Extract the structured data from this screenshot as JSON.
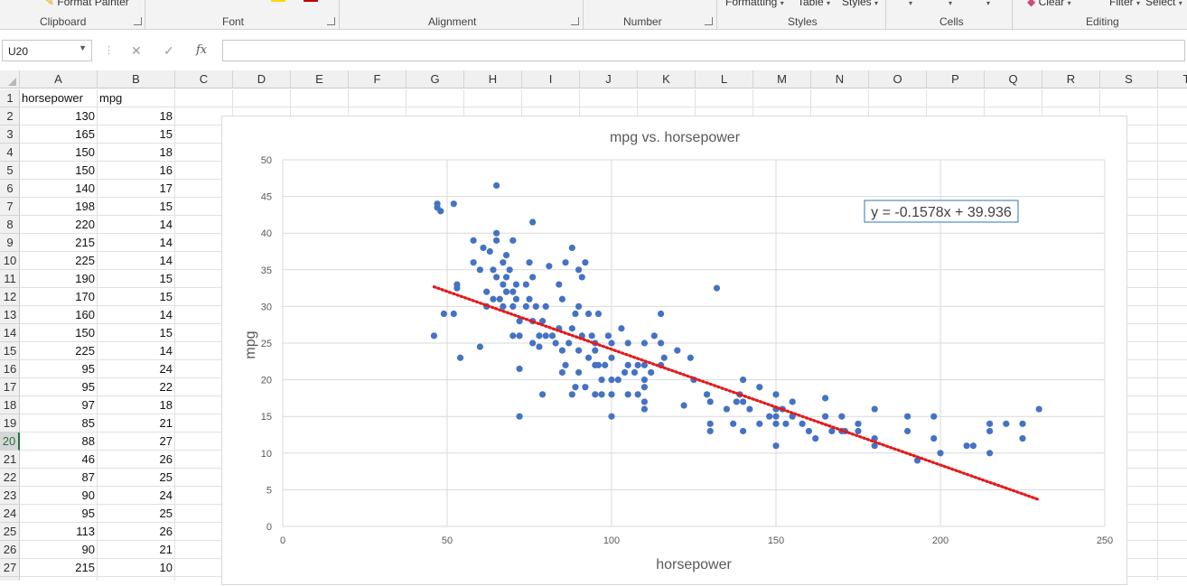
{
  "ribbon": {
    "clipboard": {
      "label": "Clipboard",
      "format_painter": "Format Painter"
    },
    "font": {
      "label": "Font"
    },
    "alignment": {
      "label": "Alignment"
    },
    "number": {
      "label": "Number"
    },
    "styles": {
      "label": "Styles",
      "conditional_formatting": "Formatting",
      "format_as_table": "Table",
      "cell_styles": "Styles"
    },
    "cells": {
      "label": "Cells"
    },
    "editing": {
      "label": "Editing",
      "clear": "Clear",
      "sort_filter": "Filter",
      "find_select": "Select"
    },
    "colors": {
      "font_highlight": "#ffd700",
      "font_color": "#c00000"
    }
  },
  "formula_bar": {
    "name_box": "U20",
    "cancel_icon": "close-icon",
    "enter_icon": "check-icon",
    "function_icon": "fx",
    "formula": ""
  },
  "sheet": {
    "columns": [
      "A",
      "B",
      "C",
      "D",
      "E",
      "F",
      "G",
      "H",
      "I",
      "J",
      "K",
      "L",
      "M",
      "N",
      "O",
      "P",
      "Q",
      "R",
      "S",
      "T"
    ],
    "row_numbers": [
      "1",
      "2",
      "3",
      "4",
      "5",
      "6",
      "7",
      "8",
      "9",
      "10",
      "11",
      "12",
      "13",
      "14",
      "15",
      "16",
      "17",
      "18",
      "19",
      "20",
      "21",
      "22",
      "23",
      "24",
      "25",
      "26",
      "27"
    ],
    "active_row": "20",
    "headers": {
      "a": "horsepower",
      "b": "mpg"
    },
    "rows": [
      [
        "130",
        "18"
      ],
      [
        "165",
        "15"
      ],
      [
        "150",
        "18"
      ],
      [
        "150",
        "16"
      ],
      [
        "140",
        "17"
      ],
      [
        "198",
        "15"
      ],
      [
        "220",
        "14"
      ],
      [
        "215",
        "14"
      ],
      [
        "225",
        "14"
      ],
      [
        "190",
        "15"
      ],
      [
        "170",
        "15"
      ],
      [
        "160",
        "14"
      ],
      [
        "150",
        "15"
      ],
      [
        "225",
        "14"
      ],
      [
        "95",
        "24"
      ],
      [
        "95",
        "22"
      ],
      [
        "97",
        "18"
      ],
      [
        "85",
        "21"
      ],
      [
        "88",
        "27"
      ],
      [
        "46",
        "26"
      ],
      [
        "87",
        "25"
      ],
      [
        "90",
        "24"
      ],
      [
        "95",
        "25"
      ],
      [
        "113",
        "26"
      ],
      [
        "90",
        "21"
      ],
      [
        "215",
        "10"
      ]
    ]
  },
  "chart_data": {
    "type": "scatter",
    "title": "mpg vs. horsepower",
    "xlabel": "horsepower",
    "ylabel": "mpg",
    "xlim": [
      0,
      250
    ],
    "ylim": [
      0,
      50
    ],
    "xticks": [
      "0",
      "50",
      "100",
      "150",
      "200",
      "250"
    ],
    "yticks": [
      "0",
      "5",
      "10",
      "15",
      "20",
      "25",
      "30",
      "35",
      "40",
      "45",
      "50"
    ],
    "grid": true,
    "legend": "none",
    "marker_color": "#4472c4",
    "trendline": {
      "type": "linear",
      "slope": -0.1578,
      "intercept": 39.936,
      "color": "#e31a1c",
      "x_range": [
        46,
        230
      ],
      "equation": "y = -0.1578x + 39.936"
    },
    "points": [
      [
        46,
        26
      ],
      [
        47,
        44
      ],
      [
        47,
        43.5
      ],
      [
        48,
        43
      ],
      [
        49,
        29
      ],
      [
        52,
        44
      ],
      [
        52,
        29
      ],
      [
        53,
        32.5
      ],
      [
        53,
        33
      ],
      [
        54,
        23
      ],
      [
        58,
        39
      ],
      [
        58,
        36
      ],
      [
        60,
        35
      ],
      [
        60,
        24.5
      ],
      [
        61,
        38
      ],
      [
        62,
        32
      ],
      [
        62,
        30
      ],
      [
        63,
        37.5
      ],
      [
        64,
        35
      ],
      [
        64,
        31
      ],
      [
        65,
        40
      ],
      [
        65,
        39
      ],
      [
        65,
        46.5
      ],
      [
        65,
        34
      ],
      [
        66,
        31
      ],
      [
        67,
        36
      ],
      [
        67,
        33
      ],
      [
        67,
        30
      ],
      [
        68,
        37
      ],
      [
        68,
        34
      ],
      [
        68,
        32
      ],
      [
        69,
        35
      ],
      [
        70,
        32
      ],
      [
        70,
        30
      ],
      [
        70,
        26
      ],
      [
        70,
        39
      ],
      [
        71,
        31
      ],
      [
        71,
        33
      ],
      [
        72,
        28
      ],
      [
        72,
        26
      ],
      [
        72,
        21.5
      ],
      [
        72,
        15
      ],
      [
        74,
        33
      ],
      [
        74,
        30
      ],
      [
        75,
        31
      ],
      [
        75,
        36
      ],
      [
        76,
        34
      ],
      [
        76,
        28
      ],
      [
        76,
        25
      ],
      [
        76,
        41.5
      ],
      [
        77,
        30
      ],
      [
        78,
        26
      ],
      [
        78,
        24.5
      ],
      [
        79,
        28
      ],
      [
        79,
        18
      ],
      [
        80,
        26
      ],
      [
        80,
        30
      ],
      [
        81,
        35.5
      ],
      [
        82,
        26
      ],
      [
        83,
        25
      ],
      [
        84,
        33
      ],
      [
        84,
        27
      ],
      [
        85,
        31
      ],
      [
        85,
        21
      ],
      [
        85,
        24
      ],
      [
        86,
        22
      ],
      [
        86,
        36
      ],
      [
        87,
        25
      ],
      [
        88,
        27
      ],
      [
        88,
        38
      ],
      [
        88,
        18
      ],
      [
        89,
        19
      ],
      [
        89,
        29
      ],
      [
        90,
        24
      ],
      [
        90,
        21
      ],
      [
        90,
        35
      ],
      [
        90,
        30
      ],
      [
        91,
        34
      ],
      [
        91,
        26
      ],
      [
        92,
        19
      ],
      [
        92,
        36
      ],
      [
        93,
        29
      ],
      [
        93,
        23
      ],
      [
        94,
        26
      ],
      [
        95,
        25
      ],
      [
        95,
        24
      ],
      [
        95,
        22
      ],
      [
        95,
        18
      ],
      [
        96,
        29
      ],
      [
        96,
        22
      ],
      [
        97,
        18
      ],
      [
        97,
        20
      ],
      [
        98,
        22
      ],
      [
        99,
        26
      ],
      [
        100,
        25
      ],
      [
        100,
        23
      ],
      [
        100,
        20
      ],
      [
        100,
        15
      ],
      [
        100,
        18
      ],
      [
        102,
        20
      ],
      [
        103,
        27
      ],
      [
        104,
        21
      ],
      [
        105,
        25
      ],
      [
        105,
        22
      ],
      [
        105,
        18
      ],
      [
        107,
        21
      ],
      [
        108,
        18
      ],
      [
        108,
        22
      ],
      [
        110,
        25
      ],
      [
        110,
        22
      ],
      [
        110,
        20
      ],
      [
        110,
        17
      ],
      [
        110,
        16
      ],
      [
        110,
        19
      ],
      [
        112,
        21
      ],
      [
        113,
        26
      ],
      [
        115,
        22
      ],
      [
        115,
        25
      ],
      [
        115,
        29
      ],
      [
        116,
        23
      ],
      [
        120,
        24
      ],
      [
        122,
        16.5
      ],
      [
        124,
        23
      ],
      [
        125,
        20
      ],
      [
        129,
        18
      ],
      [
        130,
        17
      ],
      [
        130,
        14
      ],
      [
        130,
        13
      ],
      [
        132,
        32.5
      ],
      [
        135,
        16
      ],
      [
        137,
        14
      ],
      [
        138,
        17
      ],
      [
        139,
        18
      ],
      [
        140,
        20
      ],
      [
        140,
        17
      ],
      [
        140,
        13
      ],
      [
        142,
        16
      ],
      [
        145,
        14
      ],
      [
        145,
        19
      ],
      [
        148,
        15
      ],
      [
        150,
        18
      ],
      [
        150,
        16
      ],
      [
        150,
        15
      ],
      [
        150,
        14
      ],
      [
        150,
        11
      ],
      [
        152,
        16
      ],
      [
        153,
        14
      ],
      [
        155,
        17
      ],
      [
        155,
        15
      ],
      [
        158,
        14
      ],
      [
        160,
        13
      ],
      [
        162,
        12
      ],
      [
        165,
        15
      ],
      [
        165,
        17.5
      ],
      [
        167,
        13
      ],
      [
        170,
        15
      ],
      [
        170,
        13
      ],
      [
        171,
        13
      ],
      [
        175,
        14
      ],
      [
        175,
        13
      ],
      [
        180,
        12
      ],
      [
        180,
        16
      ],
      [
        180,
        11
      ],
      [
        190,
        15
      ],
      [
        190,
        13
      ],
      [
        193,
        9
      ],
      [
        198,
        15
      ],
      [
        198,
        12
      ],
      [
        200,
        10
      ],
      [
        208,
        11
      ],
      [
        210,
        11
      ],
      [
        215,
        14
      ],
      [
        215,
        13
      ],
      [
        215,
        10
      ],
      [
        220,
        14
      ],
      [
        225,
        14
      ],
      [
        225,
        12
      ],
      [
        230,
        16
      ]
    ]
  }
}
